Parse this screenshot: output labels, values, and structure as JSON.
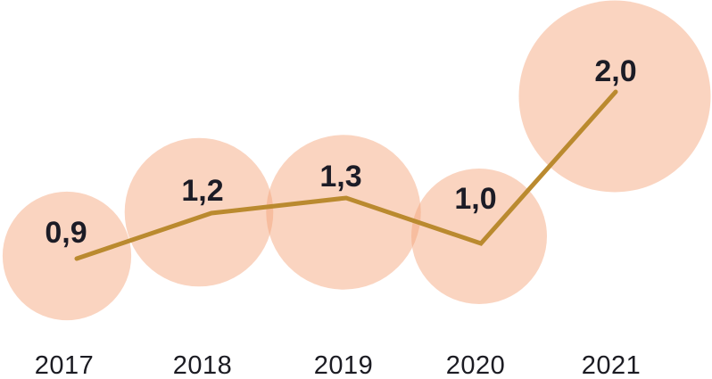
{
  "chart_data": {
    "type": "line",
    "subtype": "bubble-line",
    "title": "",
    "xlabel": "",
    "ylabel": "",
    "categories": [
      "2017",
      "2018",
      "2019",
      "2020",
      "2021"
    ],
    "values": [
      0.9,
      1.2,
      1.3,
      1.0,
      2.0
    ],
    "point_labels": [
      "0,9",
      "1,2",
      "1,3",
      "1,0",
      "2,0"
    ],
    "decimal_separator": ",",
    "axes_visible": false,
    "grid": false,
    "legend": "none",
    "bubble_area_proportional_to_value": true,
    "colors": {
      "background": "#FFFFFF",
      "bubble_fill": "#F5A57C",
      "bubble_opacity": 0.48,
      "line": "#BA8A2F",
      "value_label": "#1C1C26",
      "category_label": "#1B1B22"
    }
  }
}
